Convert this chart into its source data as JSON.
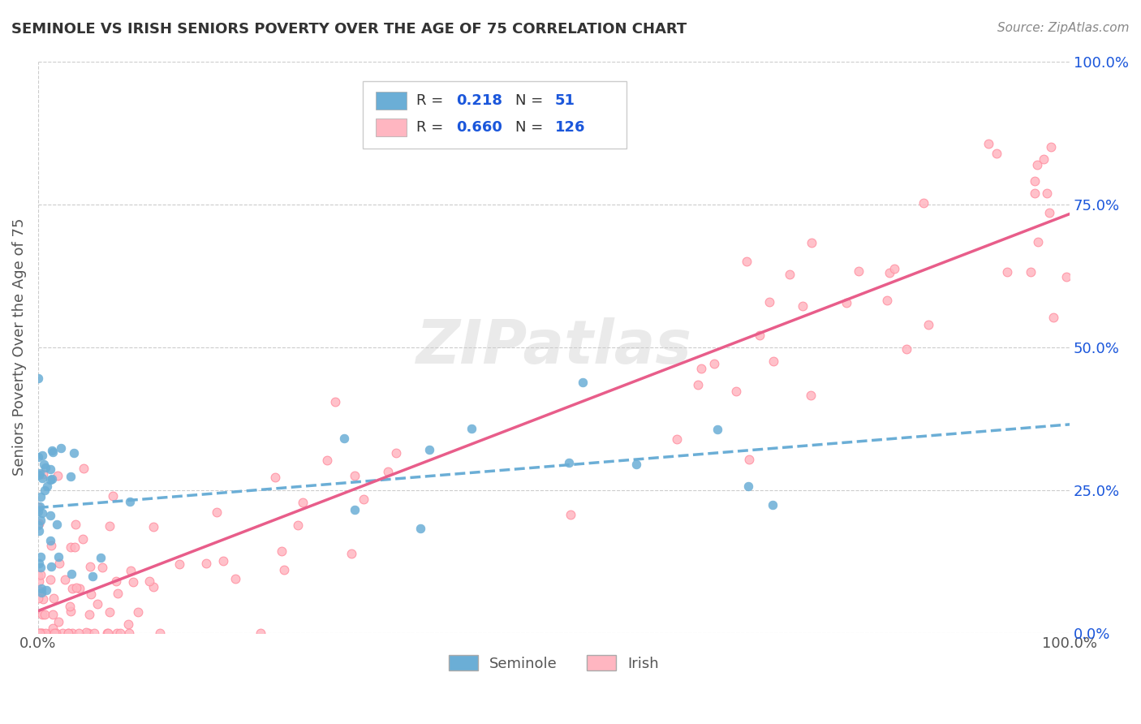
{
  "title": "SEMINOLE VS IRISH SENIORS POVERTY OVER THE AGE OF 75 CORRELATION CHART",
  "source": "Source: ZipAtlas.com",
  "ylabel": "Seniors Poverty Over the Age of 75",
  "seminole_R": 0.218,
  "seminole_N": 51,
  "irish_R": 0.66,
  "irish_N": 126,
  "seminole_color": "#6baed6",
  "irish_color": "#ffb6c1",
  "seminole_line_color": "#6baed6",
  "irish_line_color": "#e85d8a",
  "bg_color": "#ffffff",
  "grid_color": "#cccccc",
  "watermark": "ZIPatlas",
  "watermark_color": "#cccccc",
  "title_color": "#333333",
  "axis_label_color": "#555555",
  "tick_color": "#555555",
  "legend_r_color": "#1a56db",
  "legend_n_color": "#1a56db",
  "xmin": 0.0,
  "xmax": 1.0,
  "ymin": 0.0,
  "ymax": 1.0,
  "right_ytick_positions": [
    0.0,
    0.25,
    0.5,
    0.75,
    1.0
  ],
  "right_ytick_labels": [
    "0.0%",
    "25.0%",
    "50.0%",
    "75.0%",
    "100.0%"
  ]
}
